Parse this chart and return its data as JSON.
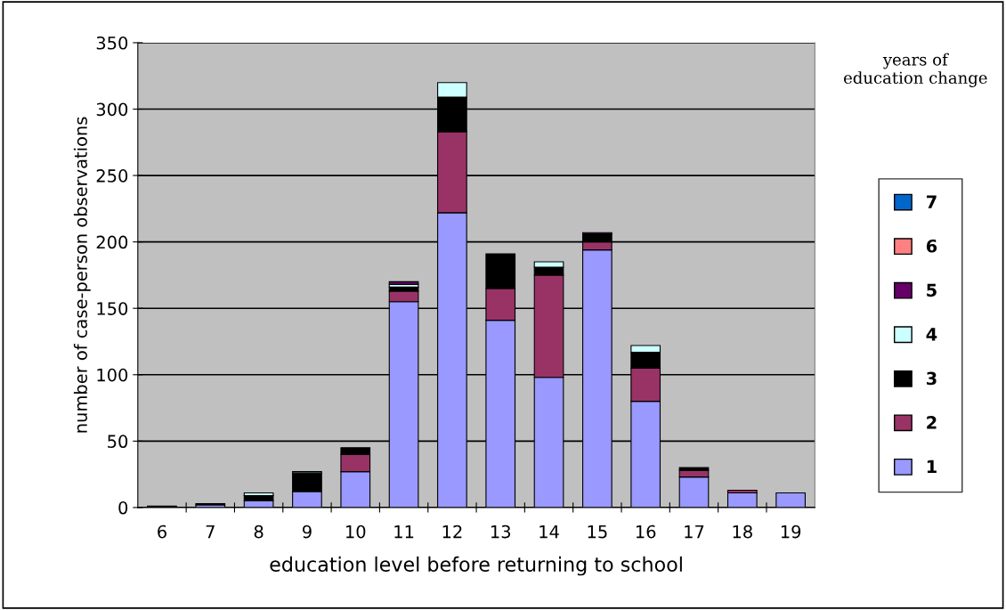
{
  "chart_data": {
    "type": "bar",
    "stacked": true,
    "xlabel": "education level before returning to school",
    "ylabel": "number of case-person observations",
    "legend_title": "years of\neducation change",
    "categories": [
      "6",
      "7",
      "8",
      "9",
      "10",
      "11",
      "12",
      "13",
      "14",
      "15",
      "16",
      "17",
      "18",
      "19"
    ],
    "series": [
      {
        "name": "1",
        "color": "#9999ff",
        "values": [
          0,
          2,
          5,
          12,
          27,
          155,
          222,
          141,
          98,
          194,
          80,
          23,
          11,
          11
        ]
      },
      {
        "name": "2",
        "color": "#993366",
        "values": [
          0,
          0,
          0,
          0,
          13,
          8,
          61,
          24,
          77,
          6,
          25,
          5,
          2,
          0
        ]
      },
      {
        "name": "3",
        "color": "#000000",
        "values": [
          1,
          1,
          4,
          14,
          5,
          3,
          26,
          26,
          6,
          6,
          12,
          2,
          0,
          0
        ]
      },
      {
        "name": "4",
        "color": "#ccffff",
        "values": [
          0,
          0,
          2,
          1,
          0,
          2,
          11,
          0,
          4,
          0,
          5,
          0,
          0,
          0
        ]
      },
      {
        "name": "5",
        "color": "#660066",
        "values": [
          0,
          0,
          0,
          0,
          0,
          2,
          0,
          0,
          0,
          1,
          0,
          0,
          0,
          0
        ]
      },
      {
        "name": "6",
        "color": "#ff8080",
        "values": [
          0,
          0,
          0,
          0,
          0,
          0,
          0,
          0,
          0,
          0,
          0,
          0,
          0,
          0
        ]
      },
      {
        "name": "7",
        "color": "#0066cc",
        "values": [
          0,
          0,
          0,
          0,
          0,
          0,
          0,
          0,
          0,
          0,
          0,
          0,
          0,
          0
        ]
      }
    ],
    "ylim": [
      0,
      350
    ],
    "yticks": [
      0,
      50,
      100,
      150,
      200,
      250,
      300,
      350
    ],
    "grid": "y",
    "legend": "right"
  }
}
